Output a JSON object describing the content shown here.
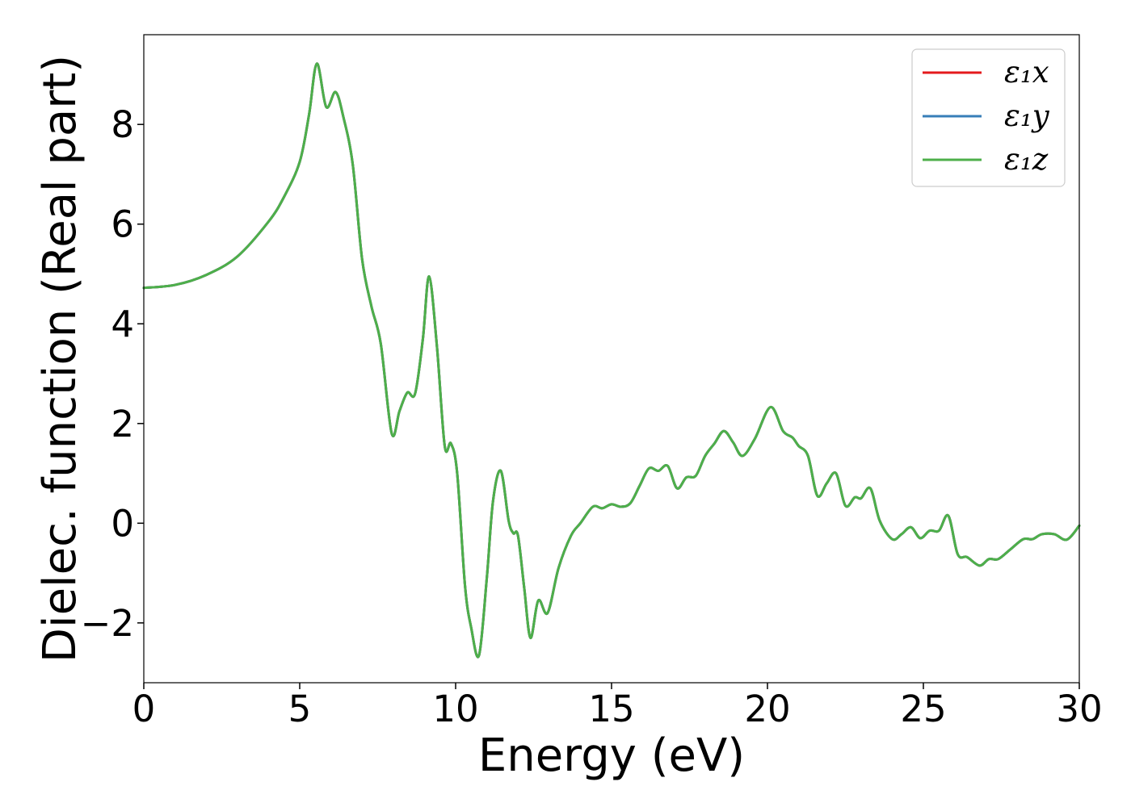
{
  "chart_data": {
    "type": "line",
    "title": "",
    "xlabel": "Energy (eV)",
    "ylabel": "Dielec. function (Real part)",
    "xlim": [
      0,
      30
    ],
    "ylim": [
      -3.2,
      9.8
    ],
    "xticks": [
      0,
      5,
      10,
      15,
      20,
      25,
      30
    ],
    "xtick_labels": [
      "0",
      "5",
      "10",
      "15",
      "20",
      "25",
      "30"
    ],
    "yticks": [
      -2,
      0,
      2,
      4,
      6,
      8
    ],
    "ytick_labels": [
      "−2",
      "0",
      "2",
      "4",
      "6",
      "8"
    ],
    "grid": false,
    "legend_position": "top-right",
    "x": [
      0,
      1,
      2,
      3,
      4,
      4.5,
      5,
      5.3,
      5.55,
      5.85,
      6.15,
      6.4,
      6.7,
      7.0,
      7.3,
      7.6,
      7.95,
      8.2,
      8.45,
      8.7,
      8.95,
      9.15,
      9.4,
      9.65,
      9.85,
      10.05,
      10.3,
      10.5,
      10.75,
      11.0,
      11.2,
      11.45,
      11.7,
      11.85,
      12.0,
      12.2,
      12.4,
      12.65,
      12.95,
      13.3,
      13.7,
      14.0,
      14.4,
      14.7,
      15.0,
      15.3,
      15.6,
      15.9,
      16.2,
      16.5,
      16.8,
      17.1,
      17.4,
      17.7,
      18.0,
      18.3,
      18.6,
      18.9,
      19.2,
      19.6,
      20.1,
      20.5,
      20.8,
      21.0,
      21.3,
      21.6,
      21.9,
      22.2,
      22.5,
      22.8,
      23.0,
      23.3,
      23.6,
      24.0,
      24.3,
      24.6,
      24.9,
      25.2,
      25.5,
      25.8,
      26.1,
      26.4,
      26.8,
      27.1,
      27.4,
      27.8,
      28.2,
      28.5,
      28.8,
      29.2,
      29.6,
      30.0
    ],
    "series": [
      {
        "name": "ε₁x",
        "color": "#e41a1c",
        "values": [
          4.72,
          4.78,
          4.98,
          5.35,
          6.05,
          6.55,
          7.25,
          8.2,
          9.22,
          8.35,
          8.65,
          8.15,
          7.2,
          5.3,
          4.35,
          3.6,
          1.8,
          2.25,
          2.62,
          2.6,
          3.7,
          4.95,
          3.55,
          1.55,
          1.6,
          1.0,
          -1.25,
          -2.1,
          -2.65,
          -1.1,
          0.45,
          1.05,
          0.05,
          -0.2,
          -0.25,
          -1.3,
          -2.3,
          -1.55,
          -1.8,
          -0.9,
          -0.25,
          0.0,
          0.33,
          0.3,
          0.38,
          0.33,
          0.4,
          0.75,
          1.1,
          1.05,
          1.15,
          0.7,
          0.92,
          0.95,
          1.35,
          1.6,
          1.85,
          1.62,
          1.35,
          1.7,
          2.33,
          1.85,
          1.72,
          1.55,
          1.35,
          0.55,
          0.8,
          1.0,
          0.35,
          0.52,
          0.5,
          0.7,
          0.05,
          -0.32,
          -0.22,
          -0.08,
          -0.3,
          -0.15,
          -0.15,
          0.15,
          -0.62,
          -0.68,
          -0.85,
          -0.72,
          -0.72,
          -0.52,
          -0.32,
          -0.32,
          -0.22,
          -0.22,
          -0.33,
          -0.05
        ]
      },
      {
        "name": "ε₁y",
        "color": "#377eb8",
        "values": [
          4.72,
          4.78,
          4.98,
          5.35,
          6.05,
          6.55,
          7.25,
          8.2,
          9.22,
          8.35,
          8.65,
          8.15,
          7.2,
          5.3,
          4.35,
          3.6,
          1.8,
          2.25,
          2.62,
          2.6,
          3.7,
          4.95,
          3.55,
          1.55,
          1.6,
          1.0,
          -1.25,
          -2.1,
          -2.65,
          -1.1,
          0.45,
          1.05,
          0.05,
          -0.2,
          -0.25,
          -1.3,
          -2.3,
          -1.55,
          -1.8,
          -0.9,
          -0.25,
          0.0,
          0.33,
          0.3,
          0.38,
          0.33,
          0.4,
          0.75,
          1.1,
          1.05,
          1.15,
          0.7,
          0.92,
          0.95,
          1.35,
          1.6,
          1.85,
          1.62,
          1.35,
          1.7,
          2.33,
          1.85,
          1.72,
          1.55,
          1.35,
          0.55,
          0.8,
          1.0,
          0.35,
          0.52,
          0.5,
          0.7,
          0.05,
          -0.32,
          -0.22,
          -0.08,
          -0.3,
          -0.15,
          -0.15,
          0.15,
          -0.62,
          -0.68,
          -0.85,
          -0.72,
          -0.72,
          -0.52,
          -0.32,
          -0.32,
          -0.22,
          -0.22,
          -0.33,
          -0.05
        ]
      },
      {
        "name": "ε₁z",
        "color": "#4daf4a",
        "values": [
          4.72,
          4.78,
          4.98,
          5.35,
          6.05,
          6.55,
          7.25,
          8.2,
          9.22,
          8.35,
          8.65,
          8.15,
          7.2,
          5.3,
          4.35,
          3.6,
          1.8,
          2.25,
          2.62,
          2.6,
          3.7,
          4.95,
          3.55,
          1.55,
          1.6,
          1.0,
          -1.25,
          -2.1,
          -2.65,
          -1.1,
          0.45,
          1.05,
          0.05,
          -0.2,
          -0.25,
          -1.3,
          -2.3,
          -1.55,
          -1.8,
          -0.9,
          -0.25,
          0.0,
          0.33,
          0.3,
          0.38,
          0.33,
          0.4,
          0.75,
          1.1,
          1.05,
          1.15,
          0.7,
          0.92,
          0.95,
          1.35,
          1.6,
          1.85,
          1.62,
          1.35,
          1.7,
          2.33,
          1.85,
          1.72,
          1.55,
          1.35,
          0.55,
          0.8,
          1.0,
          0.35,
          0.52,
          0.5,
          0.7,
          0.05,
          -0.32,
          -0.22,
          -0.08,
          -0.3,
          -0.15,
          -0.15,
          0.15,
          -0.62,
          -0.68,
          -0.85,
          -0.72,
          -0.72,
          -0.52,
          -0.32,
          -0.32,
          -0.22,
          -0.22,
          -0.33,
          -0.05
        ]
      }
    ]
  }
}
